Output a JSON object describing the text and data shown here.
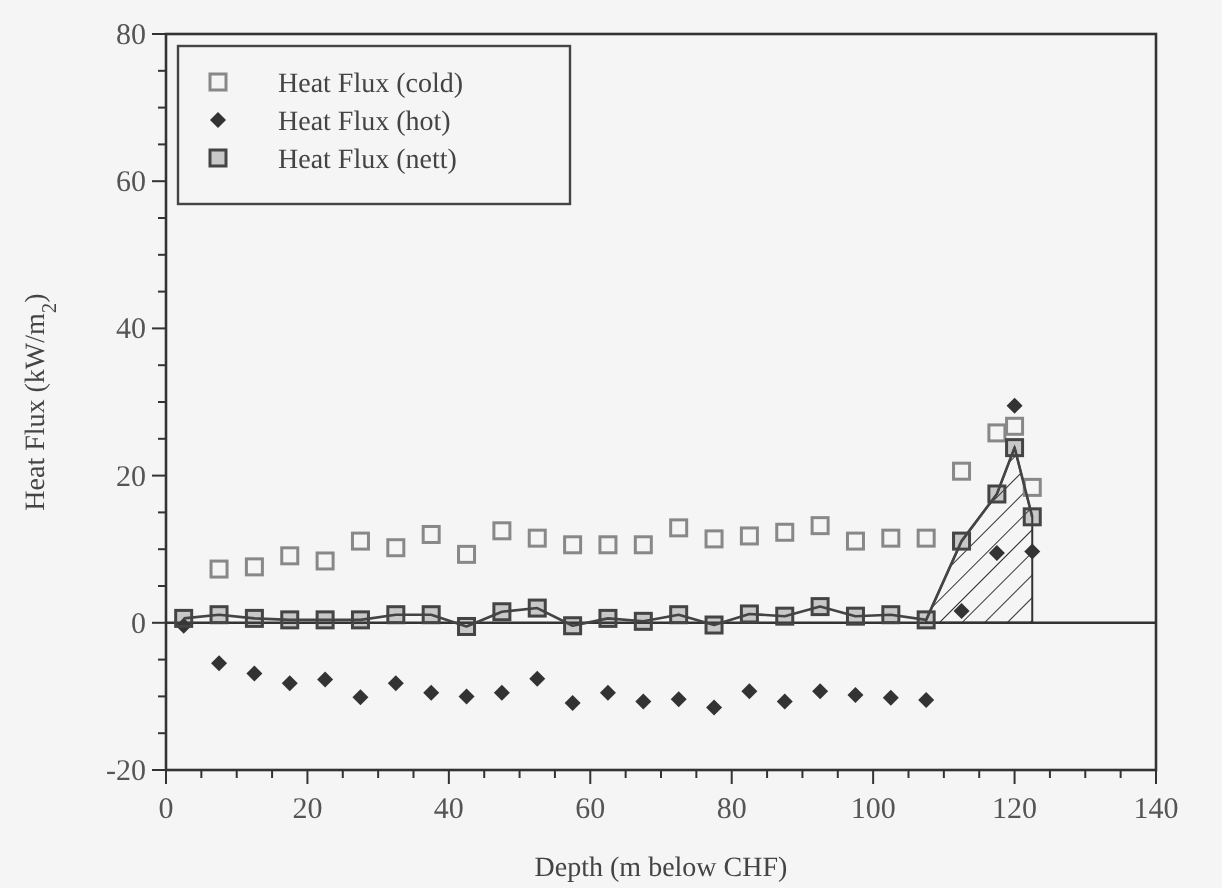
{
  "chart_data": {
    "type": "scatter",
    "xlabel": "Depth (m below CHF)",
    "ylabel": "Heat Flux (kW/m$_{2}$)",
    "xlim": [
      0,
      140
    ],
    "ylim": [
      -20,
      80
    ],
    "xticks": [
      0,
      {
        "value": 5,
        "label": null
      },
      {
        "value": 10,
        "label": null
      },
      {
        "value": 15,
        "label": null
      },
      20,
      {
        "value": 25,
        "label": null
      },
      {
        "value": 30,
        "label": null
      },
      {
        "value": 35,
        "label": null
      },
      40,
      {
        "value": 45,
        "label": null
      },
      {
        "value": 50,
        "label": null
      },
      {
        "value": 55,
        "label": null
      },
      60,
      {
        "value": 65,
        "label": null
      },
      {
        "value": 70,
        "label": null
      },
      {
        "value": 75,
        "label": null
      },
      80,
      {
        "value": 85,
        "label": null
      },
      {
        "value": 90,
        "label": null
      },
      {
        "value": 95,
        "label": null
      },
      100,
      {
        "value": 105,
        "label": null
      },
      {
        "value": 110,
        "label": null
      },
      {
        "value": 115,
        "label": null
      },
      120,
      {
        "value": 125,
        "label": null
      },
      {
        "value": 130,
        "label": null
      },
      {
        "value": 135,
        "label": null
      },
      140
    ],
    "yticks": [
      -20,
      {
        "value": -15,
        "label": null
      },
      {
        "value": -10,
        "label": null
      },
      {
        "value": -5,
        "label": null
      },
      0,
      {
        "value": 5,
        "label": null
      },
      {
        "value": 10,
        "label": null
      },
      {
        "value": 15,
        "label": null
      },
      20,
      {
        "value": 25,
        "label": null
      },
      {
        "value": 30,
        "label": null
      },
      {
        "value": 35,
        "label": null
      },
      40,
      {
        "value": 45,
        "label": null
      },
      {
        "value": 50,
        "label": null
      },
      {
        "value": 55,
        "label": null
      },
      60,
      {
        "value": 65,
        "label": null
      },
      {
        "value": 70,
        "label": null
      },
      {
        "value": 75,
        "label": null
      },
      80
    ],
    "grid": false,
    "legend": "top left",
    "ref_lines": [
      {
        "axis": "y",
        "value": 0
      }
    ],
    "series": [
      {
        "type": "area",
        "color": "#333333",
        "x": [
          107.5,
          112.5,
          117.5,
          120,
          122.5
        ],
        "values": [
          0.4,
          11.1,
          17.5,
          23.8,
          14.4
        ]
      },
      {
        "name": "Heat Flux (cold)",
        "marker": "square",
        "color": "#888888",
        "x": [
          7.5,
          12.5,
          17.5,
          22.5,
          27.5,
          32.5,
          37.5,
          42.5,
          47.5,
          52.5,
          57.5,
          62.5,
          67.5,
          72.5,
          77.5,
          82.5,
          87.5,
          92.5,
          97.5,
          102.5,
          107.5,
          112.5,
          117.5,
          120,
          122.5
        ],
        "values": [
          7.3,
          7.6,
          9.1,
          8.4,
          11.1,
          10.2,
          12.0,
          9.3,
          12.5,
          11.5,
          10.6,
          10.6,
          10.6,
          12.9,
          11.4,
          11.8,
          12.3,
          13.2,
          11.1,
          11.5,
          11.5,
          20.6,
          25.8,
          26.7,
          18.4
        ]
      },
      {
        "name": "Heat Flux (hot)",
        "marker": "diamond",
        "color": "#333333",
        "x": [
          2.5,
          7.5,
          12.5,
          17.5,
          22.5,
          27.5,
          32.5,
          37.5,
          42.5,
          47.5,
          52.5,
          57.5,
          62.5,
          67.5,
          72.5,
          77.5,
          82.5,
          87.5,
          92.5,
          97.5,
          102.5,
          107.5,
          112.5,
          117.5,
          120,
          122.5
        ],
        "values": [
          -0.4,
          -5.5,
          -6.9,
          -8.2,
          -7.7,
          -10.1,
          -8.2,
          -9.5,
          -10.0,
          -9.5,
          -7.6,
          -10.9,
          -9.5,
          -10.7,
          -10.4,
          -11.5,
          -9.3,
          -10.7,
          -9.3,
          -9.8,
          -10.2,
          -10.5,
          1.6,
          9.5,
          29.5,
          9.7
        ]
      },
      {
        "name": "Heat Flux (nett)",
        "type": "line",
        "marker": "square",
        "color": "#444444",
        "x": [
          2.5,
          7.5,
          12.5,
          17.5,
          22.5,
          27.5,
          32.5,
          37.5,
          42.5,
          47.5,
          52.5,
          57.5,
          62.5,
          67.5,
          72.5,
          77.5,
          82.5,
          87.5,
          92.5,
          97.5,
          102.5,
          107.5,
          112.5,
          117.5,
          120,
          122.5
        ],
        "values": [
          0.6,
          1.1,
          0.6,
          0.4,
          0.4,
          0.4,
          1.1,
          1.1,
          -0.5,
          1.5,
          2.0,
          -0.4,
          0.6,
          0.2,
          1.1,
          -0.3,
          1.2,
          0.9,
          2.2,
          0.9,
          1.1,
          0.4,
          11.1,
          17.5,
          23.8,
          14.4
        ]
      }
    ]
  }
}
